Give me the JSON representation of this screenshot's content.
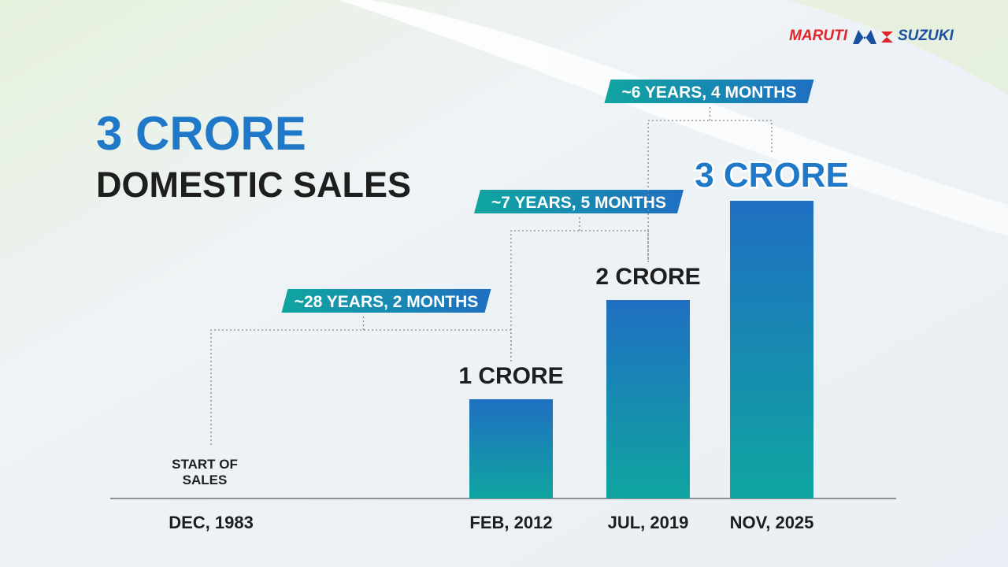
{
  "logo": {
    "left": "MARUTI",
    "right": "SUZUKI"
  },
  "chart_data": {
    "type": "bar",
    "title": "3 CRORE",
    "subtitle": "DOMESTIC SALES",
    "categories": [
      "DEC, 1983",
      "FEB, 2012",
      "JUL, 2019",
      "NOV, 2025"
    ],
    "values": [
      0,
      1,
      2,
      3
    ],
    "value_labels": [
      "START OF SALES",
      "1 CRORE",
      "2 CRORE",
      "3 CRORE"
    ],
    "intervals": [
      "~28 YEARS, 2 MONTHS",
      "~7 YEARS, 5 MONTHS",
      "~6 YEARS, 4 MONTHS"
    ],
    "colors": [
      "#10a5a0",
      "#1f6fc2"
    ]
  }
}
